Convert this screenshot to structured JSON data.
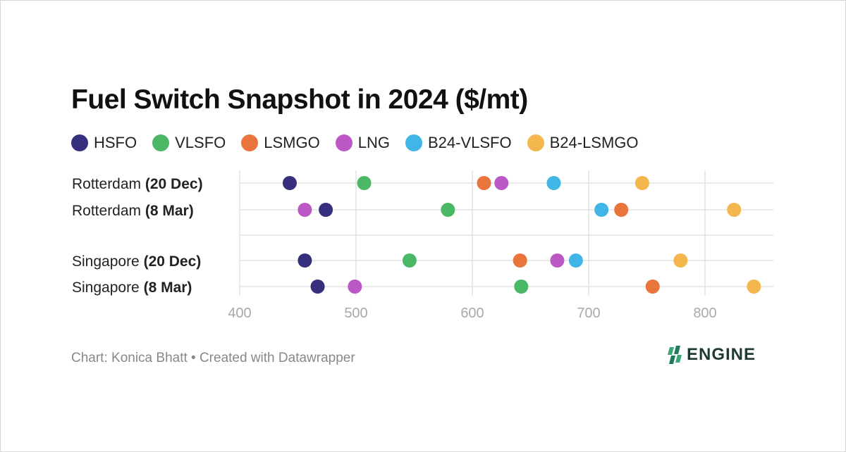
{
  "title": "Fuel Switch Snapshot in 2024 ($/mt)",
  "footer": "Chart: Konica Bhatt • Created with Datawrapper",
  "logo_text": "ENGINE",
  "chart_data": {
    "type": "dot",
    "title": "Fuel Switch Snapshot in 2024 ($/mt)",
    "xlim": [
      400,
      860
    ],
    "xticks": [
      "400",
      "500",
      "600",
      "700",
      "800"
    ],
    "grid": true,
    "legend_placement": "top",
    "categories": [
      {
        "name": "Rotterdam",
        "bold": "(20 Dec)"
      },
      {
        "name": "Rotterdam",
        "bold": "(8 Mar)"
      },
      {
        "name": "Singapore",
        "bold": "(20 Dec)"
      },
      {
        "name": "Singapore",
        "bold": "(8 Mar)"
      }
    ],
    "series": [
      {
        "name": "HSFO",
        "color": "#352f7d",
        "values": [
          443,
          474,
          456,
          467
        ]
      },
      {
        "name": "VLSFO",
        "color": "#4bb865",
        "values": [
          507,
          579,
          546,
          642
        ]
      },
      {
        "name": "LSMGO",
        "color": "#e9743c",
        "values": [
          610,
          728,
          641,
          755
        ]
      },
      {
        "name": "LNG",
        "color": "#bb58c6",
        "values": [
          625,
          456,
          673,
          499
        ]
      },
      {
        "name": "B24-VLSFO",
        "color": "#41b6e6",
        "values": [
          670,
          711,
          689,
          null
        ]
      },
      {
        "name": "B24-LSMGO",
        "color": "#f3b74e",
        "values": [
          746,
          825,
          779,
          842
        ]
      }
    ]
  }
}
